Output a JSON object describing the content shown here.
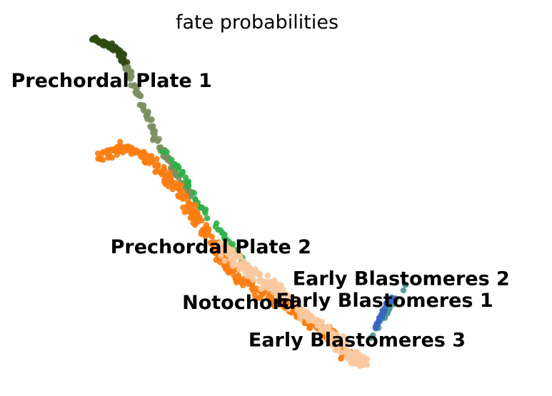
{
  "chart_data": {
    "type": "scatter",
    "title": "fate probabilities",
    "xlabel": "",
    "ylabel": "",
    "axes_visible": false,
    "grid": false,
    "legend": "none",
    "labels": [
      {
        "text": "Prechordal Plate 1",
        "x": 0.02,
        "y": 0.78
      },
      {
        "text": "Prechordal Plate 2",
        "x": 0.2,
        "y": 0.36
      },
      {
        "text": "Early Blastomeres 2",
        "x": 0.53,
        "y": 0.28
      },
      {
        "text": "Early Blastomeres 1",
        "x": 0.5,
        "y": 0.225
      },
      {
        "text": "Notochord",
        "x": 0.33,
        "y": 0.22
      },
      {
        "text": "Early Blastomeres 3",
        "x": 0.45,
        "y": 0.125
      }
    ],
    "clusters": [
      {
        "name": "Prechordal Plate 1",
        "color": "#2f4a12",
        "path": [
          [
            0.17,
            0.9
          ],
          [
            0.19,
            0.89
          ],
          [
            0.21,
            0.875
          ],
          [
            0.22,
            0.86
          ],
          [
            0.23,
            0.83
          ]
        ],
        "count": 70,
        "spread": 0.01
      },
      {
        "name": "Prechordal Plate 1 (grey-green)",
        "color": "#7d8f62",
        "path": [
          [
            0.23,
            0.83
          ],
          [
            0.25,
            0.76
          ],
          [
            0.27,
            0.7
          ],
          [
            0.29,
            0.63
          ],
          [
            0.32,
            0.56
          ],
          [
            0.35,
            0.5
          ]
        ],
        "count": 110,
        "spread": 0.008
      },
      {
        "name": "Prechordal Plate 2 (green)",
        "color": "#2fb048",
        "path": [
          [
            0.3,
            0.62
          ],
          [
            0.33,
            0.56
          ],
          [
            0.36,
            0.49
          ],
          [
            0.39,
            0.43
          ],
          [
            0.43,
            0.36
          ],
          [
            0.45,
            0.32
          ]
        ],
        "count": 60,
        "spread": 0.008
      },
      {
        "name": "Notochord (orange)",
        "color": "#fb7d12",
        "path": [
          [
            0.18,
            0.6
          ],
          [
            0.22,
            0.63
          ],
          [
            0.26,
            0.61
          ],
          [
            0.3,
            0.56
          ],
          [
            0.33,
            0.51
          ],
          [
            0.36,
            0.44
          ],
          [
            0.39,
            0.37
          ],
          [
            0.42,
            0.31
          ],
          [
            0.46,
            0.27
          ],
          [
            0.51,
            0.23
          ],
          [
            0.56,
            0.19
          ],
          [
            0.6,
            0.15
          ],
          [
            0.63,
            0.1
          ]
        ],
        "count": 420,
        "spread": 0.017
      },
      {
        "name": "Early Blastomeres 3 (peach)",
        "color": "#fbc9a0",
        "path": [
          [
            0.4,
            0.38
          ],
          [
            0.44,
            0.33
          ],
          [
            0.48,
            0.29
          ],
          [
            0.52,
            0.25
          ],
          [
            0.56,
            0.2
          ],
          [
            0.6,
            0.15
          ],
          [
            0.64,
            0.1
          ],
          [
            0.66,
            0.08
          ]
        ],
        "count": 260,
        "spread": 0.022
      },
      {
        "name": "Early Blastomeres 2 (teal)",
        "color": "#4a9690",
        "path": [
          [
            0.67,
            0.14
          ],
          [
            0.69,
            0.19
          ],
          [
            0.71,
            0.23
          ],
          [
            0.73,
            0.27
          ],
          [
            0.74,
            0.3
          ]
        ],
        "count": 35,
        "spread": 0.005
      },
      {
        "name": "Early Blastomeres 1 (blue)",
        "color": "#3a66c2",
        "path": [
          [
            0.68,
            0.17
          ],
          [
            0.69,
            0.2
          ],
          [
            0.7,
            0.23
          ],
          [
            0.71,
            0.25
          ]
        ],
        "count": 30,
        "spread": 0.004
      }
    ]
  }
}
